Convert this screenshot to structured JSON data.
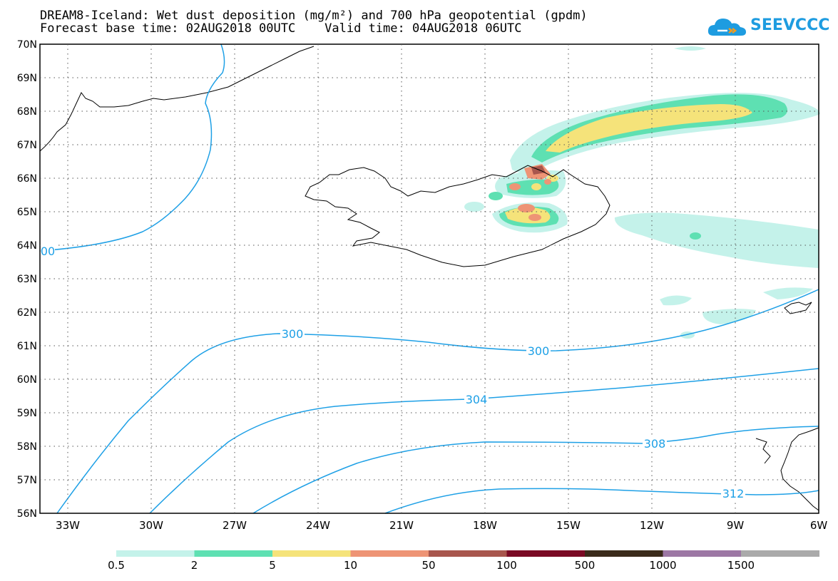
{
  "title_line1": "DREAM8-Iceland: Wet dust deposition (mg/m²) and 700 hPa geopotential (gpdm)",
  "title_line2": "Forecast base time: 02AUG2018 00UTC    Valid time: 04AUG2018 06UTC",
  "logo_text": "SEEVCCC",
  "colors": {
    "contour": "#1ea0e6",
    "coast": "#000000",
    "grid": "#555555",
    "logo": "#1e9ce0"
  },
  "map": {
    "lon_range": [
      -34,
      -6
    ],
    "lat_range": [
      56,
      70
    ],
    "lon_ticks": [
      "33W",
      "30W",
      "27W",
      "24W",
      "21W",
      "18W",
      "15W",
      "12W",
      "9W",
      "6W"
    ],
    "lat_ticks": [
      "70N",
      "69N",
      "68N",
      "67N",
      "66N",
      "65N",
      "64N",
      "63N",
      "62N",
      "61N",
      "60N",
      "59N",
      "58N",
      "57N",
      "56N"
    ],
    "contour_labels": [
      "00",
      "300",
      "300",
      "304",
      "308",
      "312"
    ]
  },
  "legend": {
    "colors": [
      "#c4f2ea",
      "#5ee0b2",
      "#f5e37a",
      "#ee9475",
      "#a8564d",
      "#7a0a24",
      "#3a2a1a",
      "#9c77a4",
      "#aaaaaa"
    ],
    "labels": [
      "0.5",
      "2",
      "5",
      "10",
      "50",
      "100",
      "500",
      "1000",
      "1500"
    ]
  }
}
